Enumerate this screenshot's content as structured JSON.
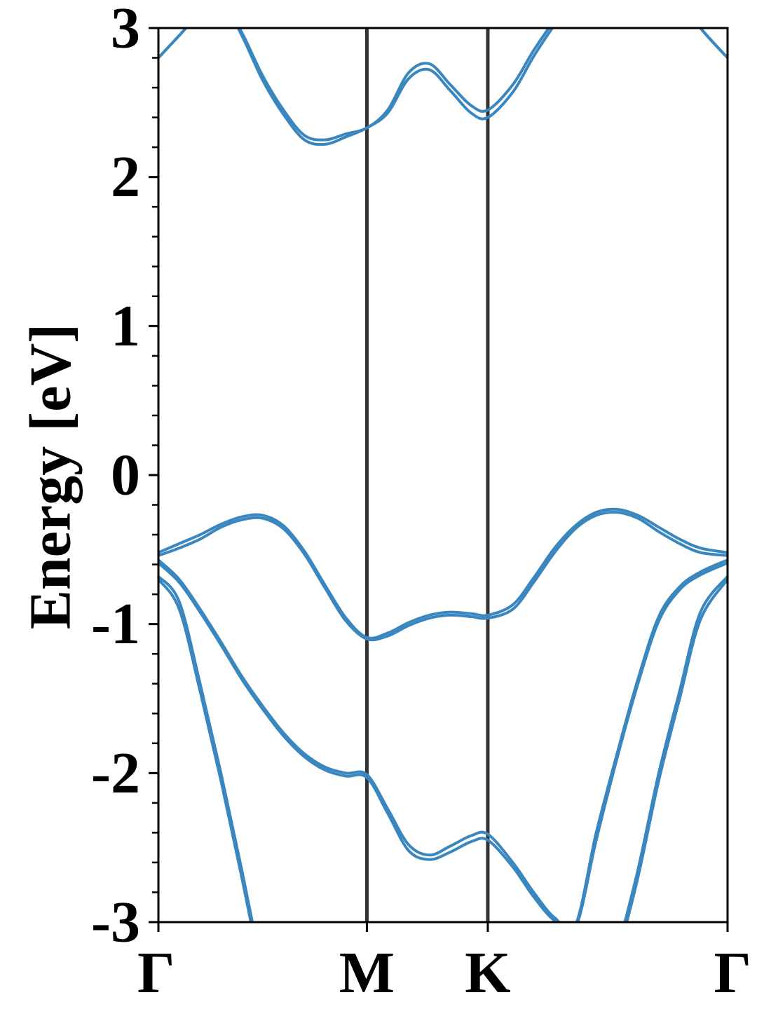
{
  "chart_data": {
    "type": "line",
    "ylabel": "Energy [eV]",
    "x": [
      0,
      0.1,
      0.2,
      0.3,
      0.4,
      0.5,
      0.6,
      0.7,
      0.8,
      0.9,
      1,
      1.1,
      1.2,
      1.3,
      1.4,
      1.5,
      1.58,
      1.7,
      1.8,
      1.9,
      2,
      2.1,
      2.2,
      2.3,
      2.4,
      2.5,
      2.6,
      2.73
    ],
    "xlim": [
      0,
      2.73
    ],
    "xticks": [
      {
        "value": 0,
        "label": "Γ"
      },
      {
        "value": 1,
        "label": "M"
      },
      {
        "value": 1.58,
        "label": "K"
      },
      {
        "value": 2.73,
        "label": "Γ"
      }
    ],
    "ylim": [
      -3,
      3
    ],
    "yticks": [
      3,
      2,
      1,
      0,
      -1,
      -2,
      -3
    ],
    "yminorticks": [
      2.8,
      2.6,
      2.4,
      2.2,
      1.8,
      1.6,
      1.4,
      1.2,
      0.8,
      0.6,
      0.4,
      0.2,
      -0.2,
      -0.4,
      -0.6,
      -0.8,
      -1.2,
      -1.4,
      -1.6,
      -1.8,
      -2.2,
      -2.4,
      -2.6,
      -2.8
    ],
    "kpoint_line_color": "#333333",
    "series": [
      {
        "color": "#3a87c0",
        "values": [
          2.8,
          2.95,
          3.1,
          3.2,
          2.97,
          2.68,
          2.45,
          2.28,
          2.25,
          2.29,
          2.33,
          2.45,
          2.7,
          2.76,
          2.62,
          2.48,
          2.45,
          2.62,
          2.85,
          3.05,
          3.2,
          3.3,
          3.4,
          3.4,
          3.3,
          3.2,
          3.0,
          2.8
        ]
      },
      {
        "color": "#3a87c0",
        "values": [
          2.8,
          2.95,
          3.1,
          3.2,
          2.95,
          2.65,
          2.42,
          2.25,
          2.22,
          2.27,
          2.33,
          2.43,
          2.66,
          2.72,
          2.58,
          2.43,
          2.4,
          2.57,
          2.81,
          3.02,
          3.2,
          3.3,
          3.4,
          3.4,
          3.3,
          3.2,
          3.0,
          2.8
        ]
      },
      {
        "color": "#3a87c0",
        "values": [
          -0.52,
          -0.46,
          -0.4,
          -0.33,
          -0.28,
          -0.27,
          -0.34,
          -0.51,
          -0.74,
          -0.96,
          -1.09,
          -1.06,
          -0.99,
          -0.94,
          -0.92,
          -0.93,
          -0.94,
          -0.87,
          -0.69,
          -0.49,
          -0.34,
          -0.25,
          -0.23,
          -0.27,
          -0.35,
          -0.43,
          -0.49,
          -0.52
        ]
      },
      {
        "color": "#3a87c0",
        "values": [
          -0.54,
          -0.49,
          -0.43,
          -0.35,
          -0.3,
          -0.29,
          -0.36,
          -0.53,
          -0.76,
          -0.98,
          -1.1,
          -1.08,
          -1.01,
          -0.96,
          -0.94,
          -0.95,
          -0.96,
          -0.9,
          -0.72,
          -0.52,
          -0.36,
          -0.27,
          -0.25,
          -0.29,
          -0.38,
          -0.46,
          -0.52,
          -0.54
        ]
      },
      {
        "color": "#3a87c0",
        "values": [
          -0.57,
          -0.7,
          -0.9,
          -1.12,
          -1.35,
          -1.55,
          -1.73,
          -1.87,
          -1.96,
          -2.0,
          -2.01,
          -2.24,
          -2.48,
          -2.55,
          -2.49,
          -2.42,
          -2.41,
          -2.6,
          -2.8,
          -2.97,
          -3.02,
          -2.4,
          -1.87,
          -1.37,
          -0.95,
          -0.75,
          -0.65,
          -0.57
        ]
      },
      {
        "color": "#3a87c0",
        "values": [
          -0.59,
          -0.72,
          -0.92,
          -1.14,
          -1.37,
          -1.57,
          -1.75,
          -1.89,
          -1.98,
          -2.02,
          -2.03,
          -2.27,
          -2.52,
          -2.58,
          -2.53,
          -2.46,
          -2.45,
          -2.63,
          -2.83,
          -2.99,
          -3.04,
          -2.45,
          -1.9,
          -1.4,
          -0.98,
          -0.77,
          -0.67,
          -0.59
        ]
      },
      {
        "color": "#3a87c0",
        "values": [
          -0.68,
          -0.85,
          -1.4,
          -2.0,
          -2.65,
          -3.35,
          null,
          null,
          null,
          null,
          null,
          null,
          null,
          null,
          null,
          null,
          null,
          null,
          null,
          null,
          null,
          null,
          -3.2,
          -2.65,
          -2.0,
          -1.45,
          -0.92,
          -0.68
        ]
      },
      {
        "color": "#3a87c0",
        "values": [
          -0.7,
          -0.9,
          -1.45,
          -2.05,
          -2.7,
          -3.4,
          null,
          null,
          null,
          null,
          null,
          null,
          null,
          null,
          null,
          null,
          null,
          null,
          null,
          null,
          null,
          null,
          -3.25,
          -2.7,
          -2.05,
          -1.5,
          -0.97,
          -0.7
        ]
      }
    ]
  }
}
